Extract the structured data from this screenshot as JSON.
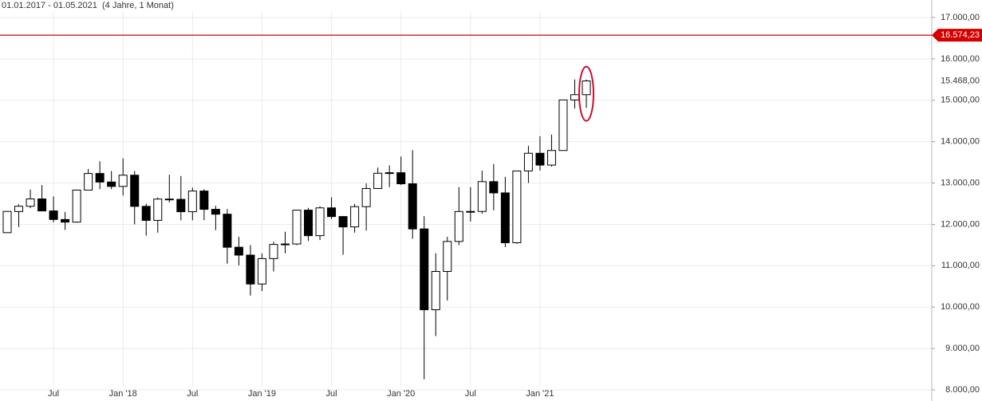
{
  "chart_data": {
    "type": "candlestick",
    "title": "01.01.2017 - 01.05.2021",
    "subtitle": "(4 Jahre, 1 Monat)",
    "categories": [
      null,
      null,
      null,
      null,
      "Jul",
      null,
      null,
      null,
      null,
      null,
      "Jan '18",
      null,
      null,
      null,
      null,
      null,
      "Jul",
      null,
      null,
      null,
      null,
      null,
      "Jan '19",
      null,
      null,
      null,
      null,
      null,
      "Jul",
      null,
      null,
      null,
      null,
      null,
      "Jan '20",
      null,
      null,
      null,
      null,
      null,
      "Jul",
      null,
      null,
      null,
      null,
      null,
      "Jan '21",
      null,
      null,
      null,
      null
    ],
    "open": [
      11800,
      12310,
      12438,
      12615,
      12325,
      12118,
      12055,
      12829,
      13230,
      13024,
      12918,
      13189,
      12436,
      12097,
      12612,
      12605,
      12306,
      12806,
      12364,
      12246,
      11447,
      11257,
      10559,
      11173,
      11515,
      11526,
      12344,
      11727,
      12399,
      12189,
      11939,
      12428,
      12867,
      13236,
      13249,
      12981,
      11890,
      9936,
      10862,
      11587,
      12311,
      12313,
      13033,
      12761,
      11556,
      13291,
      13719,
      13433,
      13786,
      15008,
      15135
    ],
    "high": [
      12313,
      12486,
      12841,
      12952,
      12676,
      12300,
      12840,
      13340,
      13525,
      13290,
      13597,
      13290,
      12500,
      12650,
      13200,
      13170,
      12890,
      12850,
      12450,
      12370,
      11700,
      11500,
      11300,
      11580,
      11823,
      12350,
      12400,
      12438,
      12656,
      12200,
      12494,
      12990,
      13374,
      13425,
      13640,
      13795,
      12200,
      11300,
      11700,
      12900,
      12900,
      13300,
      13460,
      13150,
      13300,
      13900,
      14131,
      14170,
      15000,
      15502,
      15500
    ],
    "low": [
      11800,
      11935,
      12390,
      12320,
      12050,
      11868,
      12040,
      12830,
      12850,
      12850,
      12700,
      12000,
      11727,
      11800,
      12530,
      12100,
      12100,
      12100,
      11860,
      11050,
      11010,
      10279,
      10386,
      10860,
      11300,
      11500,
      11600,
      11620,
      12130,
      11266,
      11800,
      11850,
      12860,
      12900,
      12950,
      11650,
      8256,
      9300,
      10160,
      11500,
      12070,
      12260,
      12340,
      11450,
      11530,
      13000,
      13300,
      13400,
      13800,
      14800,
      14816
    ],
    "close": [
      12313,
      12438,
      12615,
      12325,
      12118,
      12055,
      12829,
      13230,
      13024,
      12918,
      13189,
      12436,
      12097,
      12612,
      12605,
      12306,
      12806,
      12364,
      12246,
      11447,
      11257,
      10559,
      11173,
      11515,
      11526,
      12344,
      11727,
      12399,
      12189,
      11939,
      12428,
      12867,
      13236,
      13249,
      12981,
      11890,
      9936,
      10862,
      11587,
      12311,
      12313,
      13033,
      12761,
      11556,
      13291,
      13719,
      13433,
      13786,
      15008,
      15135,
      15468
    ],
    "up_color": "#ffffff",
    "down_color": "#000000",
    "edge_color": "#000000",
    "ylim": [
      8000,
      17000
    ],
    "yticks": [
      {
        "value": 8000,
        "label": "8.000,00"
      },
      {
        "value": 9000,
        "label": "9.000,00"
      },
      {
        "value": 10000,
        "label": "10.000,00"
      },
      {
        "value": 11000,
        "label": "11.000,00"
      },
      {
        "value": 12000,
        "label": "12.000,00"
      },
      {
        "value": 13000,
        "label": "13.000,00"
      },
      {
        "value": 14000,
        "label": "14.000,00"
      },
      {
        "value": 15000,
        "label": "15.000,00"
      },
      {
        "value": 16000,
        "label": "16.000,00"
      },
      {
        "value": 17000,
        "label": "17.000,00"
      }
    ],
    "hline": {
      "value": 16574.23,
      "label": "16.574,23",
      "color": "#d40000"
    },
    "last_price": {
      "value": 15468,
      "label": "15.468,00"
    },
    "grid": true
  }
}
